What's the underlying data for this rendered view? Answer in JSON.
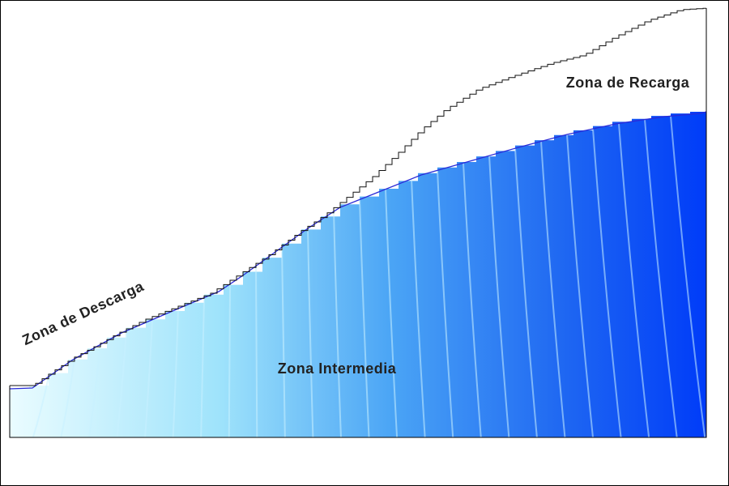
{
  "labels": {
    "recharge": "Zona de Recarga",
    "discharge": "Zona de Descarga",
    "intermediate": "Zona Intermedia"
  }
}
